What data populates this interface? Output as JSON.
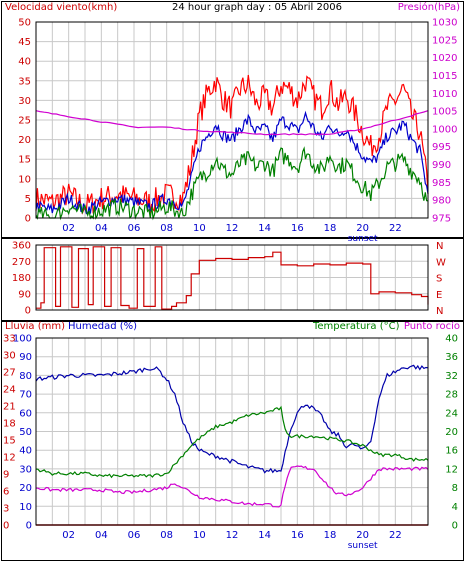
{
  "chart_data": [
    {
      "type": "line",
      "title": "24 hour graph day : 05 Abril 2006",
      "ylabel_left": "Velocidad viento(kmh)",
      "ylabel_right": "Presión(hPa)",
      "x_ticks": [
        "02",
        "04",
        "06",
        "08",
        "10",
        "12",
        "14",
        "16",
        "18",
        "20",
        "22"
      ],
      "annotation": "sunset",
      "annotation_hour": 20,
      "ylim_left": [
        0,
        50
      ],
      "ylim_right": [
        975,
        1030
      ],
      "y_ticks_left": [
        "0",
        "5",
        "10",
        "15",
        "20",
        "25",
        "30",
        "35",
        "40",
        "45",
        "50"
      ],
      "y_ticks_right": [
        "975",
        "980",
        "985",
        "990",
        "995",
        "1000",
        "1005",
        "1010",
        "1015",
        "1020",
        "1025",
        "1030"
      ],
      "grid": true,
      "colors": {
        "gust": "#ff0000",
        "avg": "#0000cc",
        "min": "#008000",
        "pressure": "#d000d0",
        "left_axis": "#cc0000",
        "right_axis": "#cc00cc"
      },
      "series": [
        {
          "name": "gust",
          "axis": "left",
          "x": [
            0,
            1,
            2,
            3,
            4,
            5,
            6,
            7,
            8,
            9,
            9.5,
            10,
            10.5,
            11,
            11.5,
            12,
            12.5,
            13,
            13.5,
            14,
            14.5,
            15,
            15.5,
            16,
            16.5,
            17,
            17.5,
            18,
            18.5,
            19,
            19.5,
            20,
            20.5,
            21,
            21.5,
            22,
            22.5,
            23,
            23.5,
            24
          ],
          "values": [
            5,
            4,
            6,
            3,
            5,
            6,
            5,
            4,
            6,
            5,
            14,
            26,
            32,
            35,
            30,
            28,
            33,
            34,
            29,
            31,
            28,
            34,
            33,
            30,
            35,
            31,
            28,
            33,
            29,
            31,
            27,
            22,
            18,
            21,
            28,
            30,
            33,
            26,
            22,
            8
          ]
        },
        {
          "name": "avg",
          "axis": "left",
          "x": [
            0,
            1,
            2,
            3,
            4,
            5,
            6,
            7,
            8,
            9,
            9.5,
            10,
            10.5,
            11,
            11.5,
            12,
            12.5,
            13,
            13.5,
            14,
            14.5,
            15,
            15.5,
            16,
            16.5,
            17,
            17.5,
            18,
            18.5,
            19,
            19.5,
            20,
            20.5,
            21,
            21.5,
            22,
            22.5,
            23,
            23.5,
            24
          ],
          "values": [
            3,
            2,
            5,
            2,
            4,
            5,
            4,
            3,
            5,
            3,
            10,
            18,
            21,
            24,
            21,
            20,
            23,
            25,
            22,
            23,
            20,
            25,
            24,
            22,
            26,
            23,
            20,
            24,
            21,
            23,
            19,
            16,
            14,
            16,
            21,
            22,
            24,
            20,
            17,
            6
          ]
        },
        {
          "name": "min",
          "axis": "left",
          "x": [
            0,
            1,
            2,
            3,
            4,
            5,
            6,
            7,
            8,
            9,
            9.5,
            10,
            10.5,
            11,
            11.5,
            12,
            12.5,
            13,
            13.5,
            14,
            14.5,
            15,
            15.5,
            16,
            16.5,
            17,
            17.5,
            18,
            18.5,
            19,
            19.5,
            20,
            20.5,
            21,
            21.5,
            22,
            22.5,
            23,
            23.5,
            24
          ],
          "values": [
            1,
            0,
            3,
            1,
            2,
            3,
            2,
            1,
            3,
            1,
            6,
            10,
            12,
            15,
            12,
            11,
            14,
            15,
            13,
            14,
            12,
            16,
            15,
            13,
            17,
            14,
            12,
            16,
            13,
            14,
            11,
            8,
            6,
            9,
            13,
            14,
            15,
            12,
            10,
            3
          ]
        },
        {
          "name": "pressure",
          "axis": "right",
          "x": [
            0,
            2,
            4,
            6,
            8,
            10,
            12,
            14,
            16,
            18,
            20,
            22,
            24
          ],
          "values": [
            1005,
            1003.5,
            1002,
            1000.5,
            1000.5,
            999.5,
            999,
            998.5,
            998.5,
            998.5,
            1000,
            1002.5,
            1005
          ]
        }
      ]
    },
    {
      "type": "line",
      "y_ticks_left": [
        "0",
        "90",
        "180",
        "270",
        "360"
      ],
      "ylim_left": [
        0,
        360
      ],
      "y_ticks_right": [
        "N",
        "E",
        "S",
        "W",
        "N"
      ],
      "colors": {
        "direction": "#cc0000",
        "axis": "#cc0000"
      },
      "series": [
        {
          "name": "direction",
          "x": [
            0,
            0.3,
            0.5,
            1.2,
            1.5,
            2.2,
            2.6,
            3.2,
            3.5,
            4.2,
            4.6,
            5.2,
            5.7,
            6.2,
            6.6,
            7.3,
            7.7,
            8.3,
            8.6,
            9.2,
            9.5,
            10,
            11,
            12,
            13,
            14,
            14.5,
            15,
            16,
            17,
            18,
            19,
            20,
            20.5,
            21,
            22,
            23,
            23.6,
            24
          ],
          "values": [
            10,
            40,
            345,
            20,
            350,
            15,
            340,
            30,
            350,
            20,
            345,
            25,
            10,
            340,
            20,
            350,
            5,
            20,
            40,
            80,
            200,
            275,
            285,
            280,
            290,
            295,
            320,
            250,
            245,
            255,
            250,
            260,
            255,
            90,
            100,
            95,
            85,
            75,
            30
          ]
        }
      ]
    },
    {
      "type": "line",
      "ylabel_left_1": "Lluvia (mm)",
      "ylabel_left_2": "Humedad (%)",
      "ylabel_right_1": "Temperatura (°C)",
      "ylabel_right_2": "Punto rocío",
      "x_ticks": [
        "02",
        "04",
        "06",
        "08",
        "10",
        "12",
        "14",
        "16",
        "18",
        "20",
        "22"
      ],
      "annotation": "sunset",
      "annotation_hour": 20,
      "ylim_humidity": [
        0,
        100
      ],
      "ylim_rain": [
        0,
        33
      ],
      "ylim_temp": [
        0,
        40
      ],
      "y_ticks_rain": [
        "0",
        "3",
        "6",
        "9",
        "12",
        "15",
        "18",
        "21",
        "24",
        "27",
        "30",
        "33"
      ],
      "y_ticks_humidity": [
        "0",
        "10",
        "20",
        "30",
        "40",
        "50",
        "60",
        "70",
        "80",
        "90",
        "100"
      ],
      "y_ticks_temp": [
        "0",
        "4",
        "8",
        "12",
        "16",
        "20",
        "24",
        "28",
        "32",
        "36",
        "40"
      ],
      "grid": true,
      "colors": {
        "humidity": "#0000aa",
        "temperature": "#008000",
        "dewpoint": "#d000d0",
        "rain": "#cc0000",
        "rain_axis": "#cc0000",
        "humidity_axis": "#0000cc",
        "temp_axis": "#008000"
      },
      "series": [
        {
          "name": "humidity",
          "x": [
            0,
            1,
            2,
            3,
            4,
            5,
            6,
            6.5,
            7,
            7.5,
            8,
            8.5,
            9,
            9.5,
            10,
            10.5,
            11,
            12,
            13,
            14,
            15,
            15.2,
            15.6,
            16,
            16.5,
            17,
            17.5,
            18,
            18.5,
            19,
            19.5,
            20,
            20.5,
            21,
            21.5,
            22,
            22.5,
            23,
            23.5,
            24
          ],
          "values": [
            78,
            79,
            80,
            80,
            80,
            81,
            82,
            83,
            84,
            83,
            78,
            70,
            55,
            45,
            40,
            38,
            37,
            34,
            31,
            29,
            29,
            37,
            52,
            60,
            65,
            62,
            58,
            50,
            48,
            42,
            43,
            40,
            45,
            68,
            80,
            82,
            84,
            85,
            84,
            84
          ]
        },
        {
          "name": "temperature",
          "x": [
            0,
            1,
            2,
            3,
            4,
            5,
            6,
            7,
            8,
            8.5,
            9,
            9.5,
            10,
            11,
            12,
            13,
            14,
            15,
            15.2,
            15.6,
            16,
            17,
            18,
            19,
            20,
            21,
            22,
            23,
            24
          ],
          "values": [
            12,
            11,
            11,
            11,
            10.5,
            10.5,
            10.5,
            10.5,
            11,
            13,
            15,
            17,
            18.5,
            21,
            22,
            23.5,
            24,
            25,
            20.5,
            19,
            19,
            19,
            18.5,
            18,
            17,
            15,
            15,
            14,
            14
          ]
        },
        {
          "name": "dewpoint",
          "x": [
            0,
            1,
            2,
            3,
            4,
            5,
            6,
            7,
            8,
            8.5,
            9,
            9.5,
            10,
            11,
            12,
            13,
            14,
            15,
            15.2,
            15.6,
            16,
            17,
            18,
            18.5,
            19,
            19.5,
            20,
            20.5,
            21,
            22,
            23,
            24
          ],
          "values": [
            8,
            7.5,
            7.5,
            7.5,
            7.5,
            7,
            7,
            7.5,
            8,
            9,
            8,
            7,
            6,
            5.5,
            5,
            4.5,
            4.5,
            4,
            8,
            12,
            12.5,
            12,
            8,
            6.5,
            6.5,
            7,
            8,
            10,
            12,
            12,
            12,
            12
          ]
        },
        {
          "name": "rain",
          "x": [
            0,
            24
          ],
          "values": [
            0,
            0
          ]
        }
      ]
    }
  ]
}
